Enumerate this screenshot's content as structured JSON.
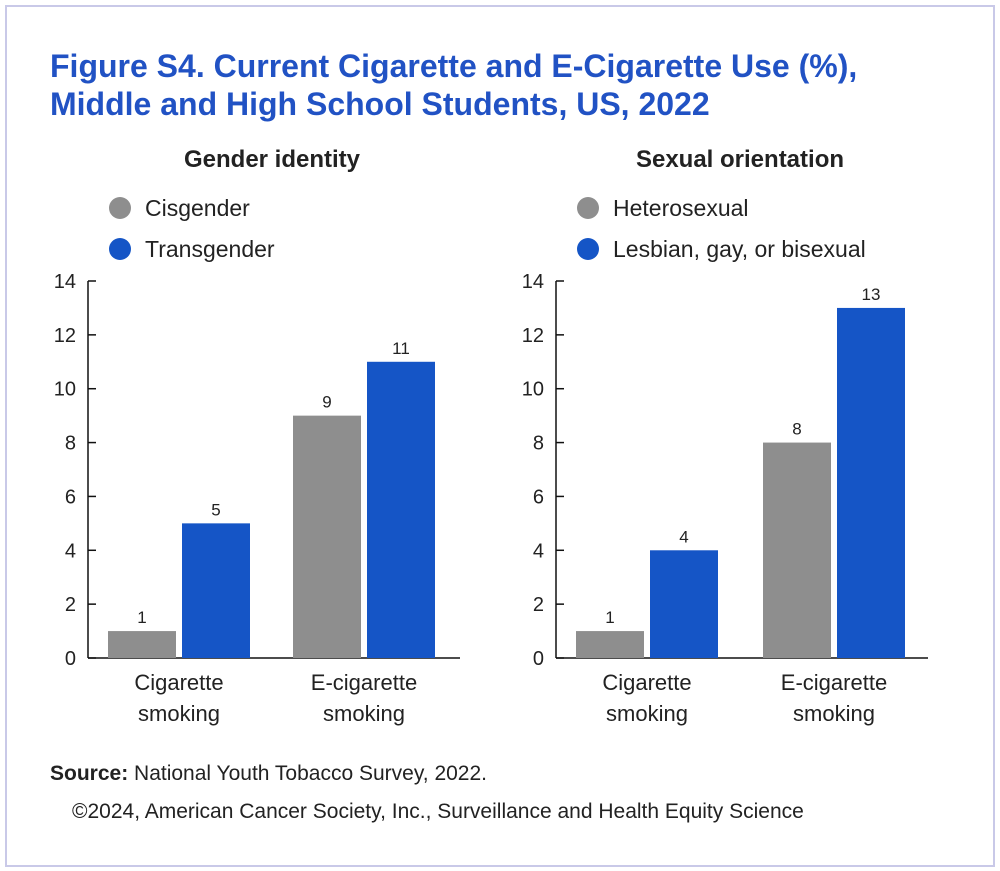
{
  "title_line1": "Figure S4. Current Cigarette and E-Cigarette Use (%),",
  "title_line2": "Middle and High School Students, US, 2022",
  "colors": {
    "gray": "#8e8e8e",
    "blue": "#1555c6",
    "title": "#2152c4"
  },
  "chart_data": [
    {
      "type": "bar",
      "title": "Gender identity",
      "categories": [
        "Cigarette smoking",
        "E-cigarette smoking"
      ],
      "category_lines": [
        [
          "Cigarette",
          "smoking"
        ],
        [
          "E-cigarette",
          "smoking"
        ]
      ],
      "series": [
        {
          "name": "Cisgender",
          "color": "gray",
          "values": [
            1,
            9
          ]
        },
        {
          "name": "Transgender",
          "color": "blue",
          "values": [
            5,
            11
          ]
        }
      ],
      "ylim": [
        0,
        14
      ],
      "yticks": [
        0,
        2,
        4,
        6,
        8,
        10,
        12,
        14
      ],
      "legend": "top-left",
      "grid": false
    },
    {
      "type": "bar",
      "title": "Sexual orientation",
      "categories": [
        "Cigarette smoking",
        "E-cigarette smoking"
      ],
      "category_lines": [
        [
          "Cigarette",
          "smoking"
        ],
        [
          "E-cigarette",
          "smoking"
        ]
      ],
      "series": [
        {
          "name": "Heterosexual",
          "color": "gray",
          "values": [
            1,
            8
          ]
        },
        {
          "name": "Lesbian, gay, or bisexual",
          "color": "blue",
          "values": [
            4,
            13
          ]
        }
      ],
      "ylim": [
        0,
        14
      ],
      "yticks": [
        0,
        2,
        4,
        6,
        8,
        10,
        12,
        14
      ],
      "legend": "top-left",
      "grid": false
    }
  ],
  "source_label": "Source:",
  "source_text": " National Youth Tobacco Survey, 2022.",
  "copyright": "©2024, American Cancer Society, Inc., Surveillance and Health Equity Science"
}
